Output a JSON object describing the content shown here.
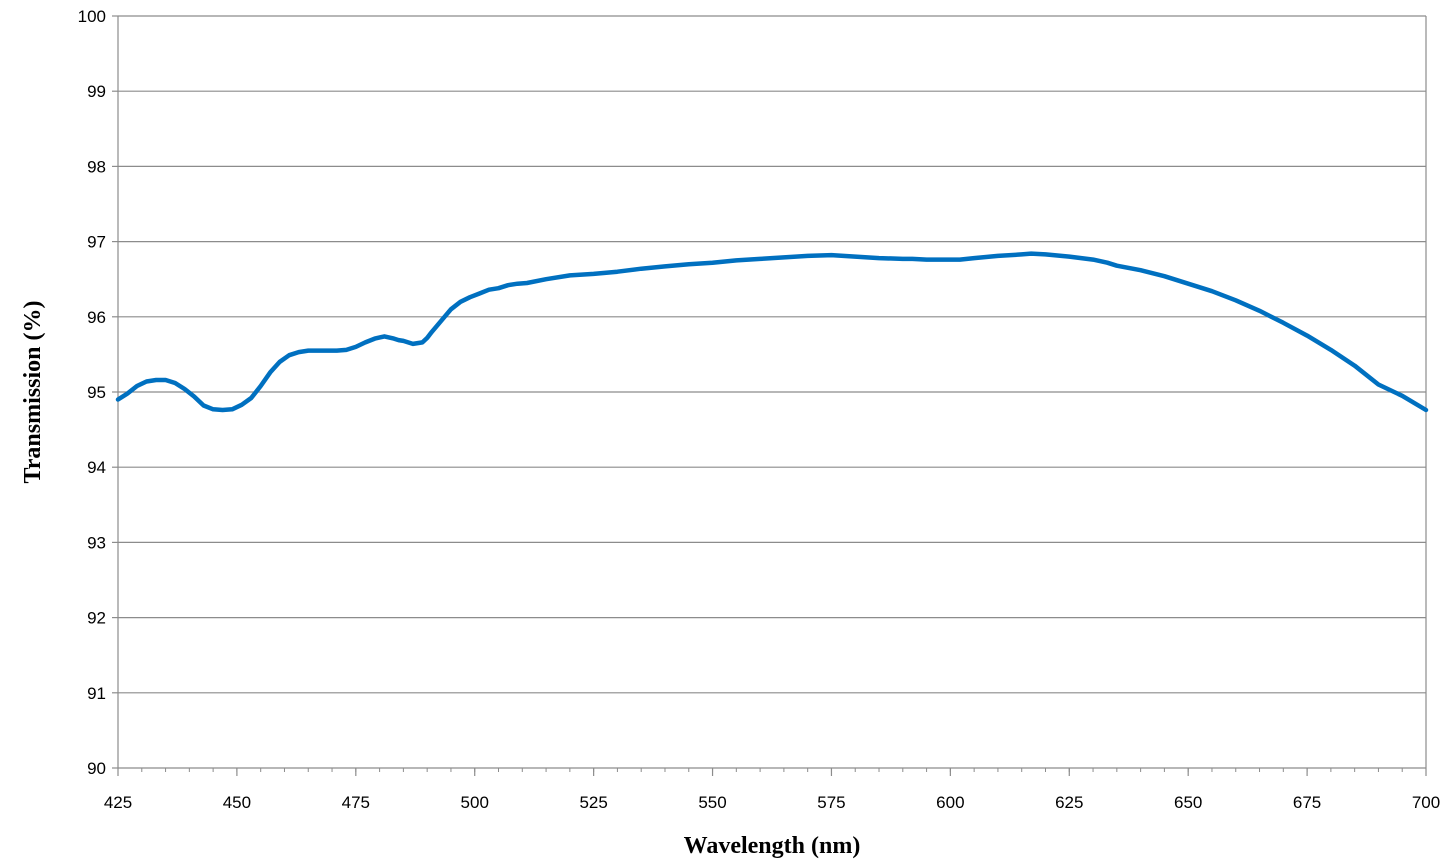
{
  "chart_data": {
    "type": "line",
    "xlabel": "Wavelength (nm)",
    "ylabel": "Transmission (%)",
    "xlim": [
      425,
      700
    ],
    "ylim": [
      90,
      100
    ],
    "x_ticks": [
      425,
      450,
      475,
      500,
      525,
      550,
      575,
      600,
      625,
      650,
      675,
      700
    ],
    "x_tick_labels": [
      "425",
      "450",
      "475",
      "500",
      "525",
      "550",
      "575",
      "600",
      "625",
      "650",
      "675",
      "700"
    ],
    "x_minor_step": 5,
    "y_ticks": [
      90,
      91,
      92,
      93,
      94,
      95,
      96,
      97,
      98,
      99,
      100
    ],
    "y_tick_labels": [
      "90",
      "91",
      "92",
      "93",
      "94",
      "95",
      "96",
      "97",
      "98",
      "99",
      "100"
    ],
    "grid": "horizontal",
    "legend": "none",
    "series": [
      {
        "color": "#0070C0",
        "x": [
          425,
          427,
          429,
          431,
          433,
          435,
          437,
          439,
          441,
          443,
          445,
          447,
          449,
          451,
          453,
          455,
          457,
          459,
          461,
          463,
          465,
          467,
          469,
          471,
          473,
          475,
          477,
          479,
          481,
          483,
          484,
          485,
          487,
          489,
          490,
          491,
          493,
          495,
          497,
          499,
          501,
          503,
          505,
          507,
          509,
          511,
          515,
          520,
          525,
          530,
          535,
          540,
          545,
          550,
          555,
          560,
          565,
          570,
          575,
          580,
          585,
          590,
          592,
          595,
          598,
          600,
          602,
          605,
          610,
          615,
          617,
          620,
          625,
          630,
          633,
          635,
          640,
          645,
          650,
          655,
          660,
          665,
          670,
          675,
          680,
          685,
          690,
          695,
          700
        ],
        "y": [
          94.9,
          94.98,
          95.08,
          95.14,
          95.16,
          95.16,
          95.12,
          95.04,
          94.94,
          94.82,
          94.77,
          94.76,
          94.77,
          94.83,
          94.92,
          95.08,
          95.26,
          95.4,
          95.49,
          95.53,
          95.55,
          95.55,
          95.55,
          95.55,
          95.56,
          95.6,
          95.66,
          95.71,
          95.74,
          95.71,
          95.69,
          95.68,
          95.64,
          95.66,
          95.72,
          95.8,
          95.95,
          96.1,
          96.2,
          96.26,
          96.31,
          96.36,
          96.38,
          96.42,
          96.44,
          96.45,
          96.5,
          96.55,
          96.57,
          96.6,
          96.64,
          96.67,
          96.7,
          96.72,
          96.75,
          96.77,
          96.79,
          96.81,
          96.82,
          96.8,
          96.78,
          96.77,
          96.77,
          96.76,
          96.76,
          96.76,
          96.76,
          96.78,
          96.81,
          96.83,
          96.84,
          96.83,
          96.8,
          96.76,
          96.72,
          96.68,
          96.62,
          96.54,
          96.44,
          96.34,
          96.22,
          96.08,
          95.92,
          95.75,
          95.56,
          95.35,
          95.1,
          94.95,
          94.76
        ]
      }
    ]
  }
}
